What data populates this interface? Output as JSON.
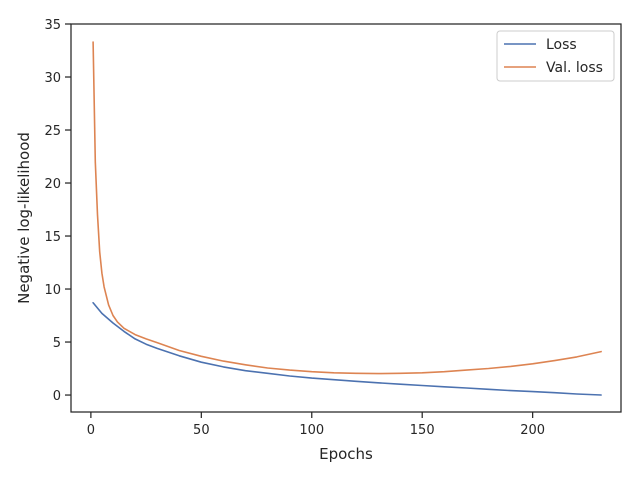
{
  "chart_data": {
    "type": "line",
    "xlabel": "Epochs",
    "ylabel": "Negative log-likelihood",
    "xlim": [
      -9,
      240
    ],
    "ylim": [
      -1.6,
      35
    ],
    "x_ticks": [
      0,
      50,
      100,
      150,
      200
    ],
    "y_ticks": [
      0,
      5,
      10,
      15,
      20,
      25,
      30,
      35
    ],
    "grid": false,
    "legend_position": "upper right",
    "series": [
      {
        "name": "Loss",
        "color": "#4c72b0",
        "x": [
          1,
          5,
          10,
          15,
          20,
          25,
          30,
          40,
          50,
          60,
          70,
          80,
          90,
          100,
          110,
          120,
          130,
          140,
          150,
          160,
          170,
          180,
          190,
          200,
          210,
          220,
          231
        ],
        "y": [
          8.7,
          7.7,
          6.8,
          6.0,
          5.3,
          4.8,
          4.4,
          3.7,
          3.1,
          2.65,
          2.3,
          2.05,
          1.8,
          1.6,
          1.45,
          1.3,
          1.15,
          1.02,
          0.9,
          0.78,
          0.66,
          0.54,
          0.42,
          0.32,
          0.22,
          0.1,
          0.0
        ]
      },
      {
        "name": "Val. loss",
        "color": "#dd8452",
        "x": [
          1,
          2,
          3,
          4,
          5,
          6,
          8,
          10,
          12,
          15,
          20,
          25,
          30,
          40,
          50,
          60,
          70,
          80,
          90,
          100,
          110,
          120,
          130,
          140,
          150,
          160,
          170,
          180,
          190,
          200,
          210,
          220,
          231
        ],
        "y": [
          33.3,
          22.0,
          17.0,
          13.5,
          11.5,
          10.2,
          8.5,
          7.5,
          6.9,
          6.3,
          5.7,
          5.3,
          4.95,
          4.2,
          3.65,
          3.2,
          2.85,
          2.55,
          2.35,
          2.2,
          2.1,
          2.05,
          2.02,
          2.05,
          2.1,
          2.2,
          2.35,
          2.5,
          2.7,
          2.95,
          3.25,
          3.6,
          4.1
        ]
      }
    ]
  }
}
